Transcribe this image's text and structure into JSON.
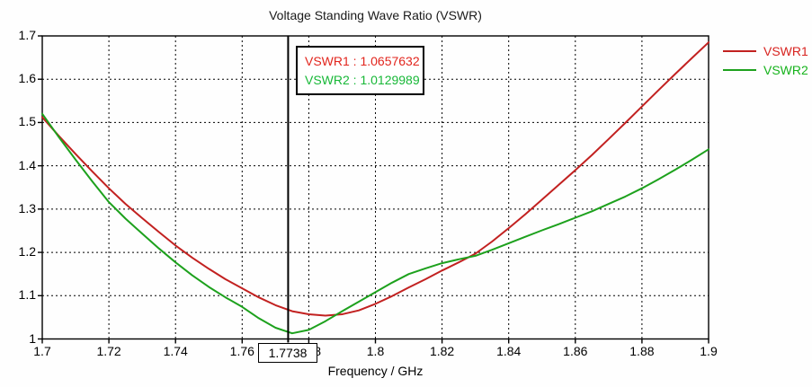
{
  "chart_data": {
    "type": "line",
    "title": "Voltage Standing Wave Ratio (VSWR)",
    "xlabel": "Frequency / GHz",
    "ylabel": "",
    "xlim": [
      1.7,
      1.9
    ],
    "ylim": [
      1.0,
      1.7
    ],
    "grid": true,
    "legend_position": "top-right-outside",
    "x_ticks": {
      "values": [
        1.7,
        1.72,
        1.74,
        1.76,
        1.78,
        1.8,
        1.82,
        1.84,
        1.86,
        1.88,
        1.9
      ],
      "labels": [
        "1.7",
        "1.72",
        "1.74",
        "1.76",
        "1.78",
        "1.8",
        "1.82",
        "1.84",
        "1.86",
        "1.88",
        "1.9"
      ]
    },
    "y_ticks": {
      "values": [
        1.0,
        1.1,
        1.2,
        1.3,
        1.4,
        1.5,
        1.6,
        1.7
      ],
      "labels": [
        "1",
        "1.1",
        "1.2",
        "1.3",
        "1.4",
        "1.5",
        "1.6",
        "1.7"
      ]
    },
    "x": [
      1.7,
      1.705,
      1.71,
      1.715,
      1.72,
      1.725,
      1.73,
      1.735,
      1.74,
      1.745,
      1.75,
      1.755,
      1.76,
      1.765,
      1.77,
      1.775,
      1.78,
      1.785,
      1.79,
      1.795,
      1.8,
      1.805,
      1.81,
      1.815,
      1.82,
      1.825,
      1.83,
      1.835,
      1.84,
      1.845,
      1.85,
      1.855,
      1.86,
      1.865,
      1.87,
      1.875,
      1.88,
      1.885,
      1.89,
      1.895,
      1.9
    ],
    "series": [
      {
        "name": "VSWR1",
        "color": "#c22120",
        "values": [
          1.512,
          1.469,
          1.427,
          1.387,
          1.348,
          1.312,
          1.279,
          1.247,
          1.216,
          1.188,
          1.162,
          1.138,
          1.117,
          1.096,
          1.078,
          1.064,
          1.057,
          1.054,
          1.057,
          1.066,
          1.081,
          1.099,
          1.119,
          1.138,
          1.158,
          1.177,
          1.197,
          1.225,
          1.256,
          1.288,
          1.322,
          1.356,
          1.39,
          1.425,
          1.462,
          1.499,
          1.537,
          1.575,
          1.612,
          1.649,
          1.685
        ]
      },
      {
        "name": "VSWR2",
        "color": "#1da11d",
        "values": [
          1.52,
          1.466,
          1.414,
          1.364,
          1.316,
          1.278,
          1.243,
          1.209,
          1.177,
          1.147,
          1.12,
          1.096,
          1.074,
          1.048,
          1.026,
          1.013,
          1.021,
          1.041,
          1.064,
          1.086,
          1.108,
          1.13,
          1.15,
          1.163,
          1.175,
          1.184,
          1.192,
          1.206,
          1.221,
          1.236,
          1.251,
          1.265,
          1.28,
          1.295,
          1.312,
          1.329,
          1.348,
          1.369,
          1.391,
          1.414,
          1.438
        ]
      }
    ],
    "marker": {
      "x": 1.7738,
      "label": "1.7738",
      "readouts": [
        {
          "text": "VSWR1 : 1.0657632",
          "color": "#e2251d"
        },
        {
          "text": "VSWR2 : 1.0129989",
          "color": "#17b837"
        }
      ]
    },
    "legend": {
      "items": [
        {
          "label": "VSWR1",
          "line_color": "#c22120",
          "text_color": "#d8231f"
        },
        {
          "label": "VSWR2",
          "line_color": "#1da11d",
          "text_color": "#16b31c"
        }
      ]
    },
    "axis_color": "#000000"
  }
}
